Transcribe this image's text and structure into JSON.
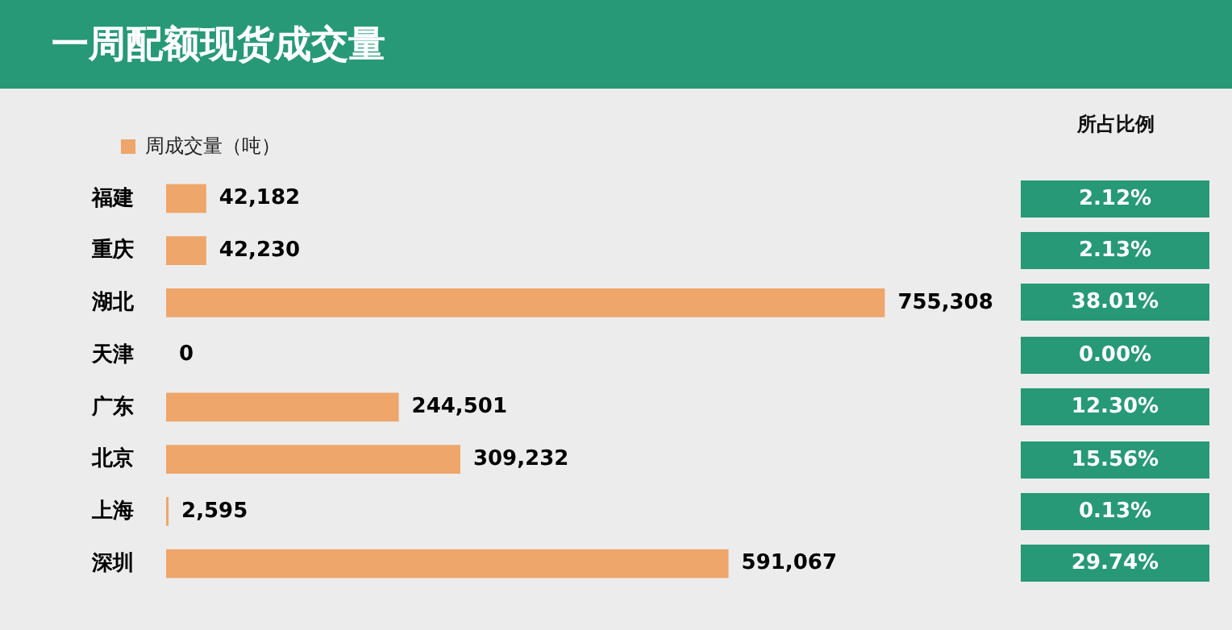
{
  "chart_data": [
    {
      "type": "bar",
      "orientation": "horizontal",
      "title": "一周配额现货成交量",
      "categories": [
        "福建",
        "重庆",
        "湖北",
        "天津",
        "广东",
        "北京",
        "上海",
        "深圳"
      ],
      "series": [
        {
          "name": "周成交量（吨）",
          "color": "#eea66b",
          "values": [
            42182,
            42230,
            755308,
            0,
            244501,
            309232,
            2595,
            591067
          ],
          "value_labels": [
            "42,182",
            "42,230",
            "755,308",
            "0",
            "244,501",
            "309,232",
            "2,595",
            "591,067"
          ]
        }
      ],
      "legend": "top left",
      "tick_labels": "y"
    },
    {
      "type": "other",
      "title": "所占比例",
      "value_labels": [
        "2.12%",
        "2.13%",
        "38.01%",
        "0.00%",
        "12.30%",
        "15.56%",
        "0.13%",
        "29.74%"
      ],
      "color": "#279977"
    }
  ]
}
